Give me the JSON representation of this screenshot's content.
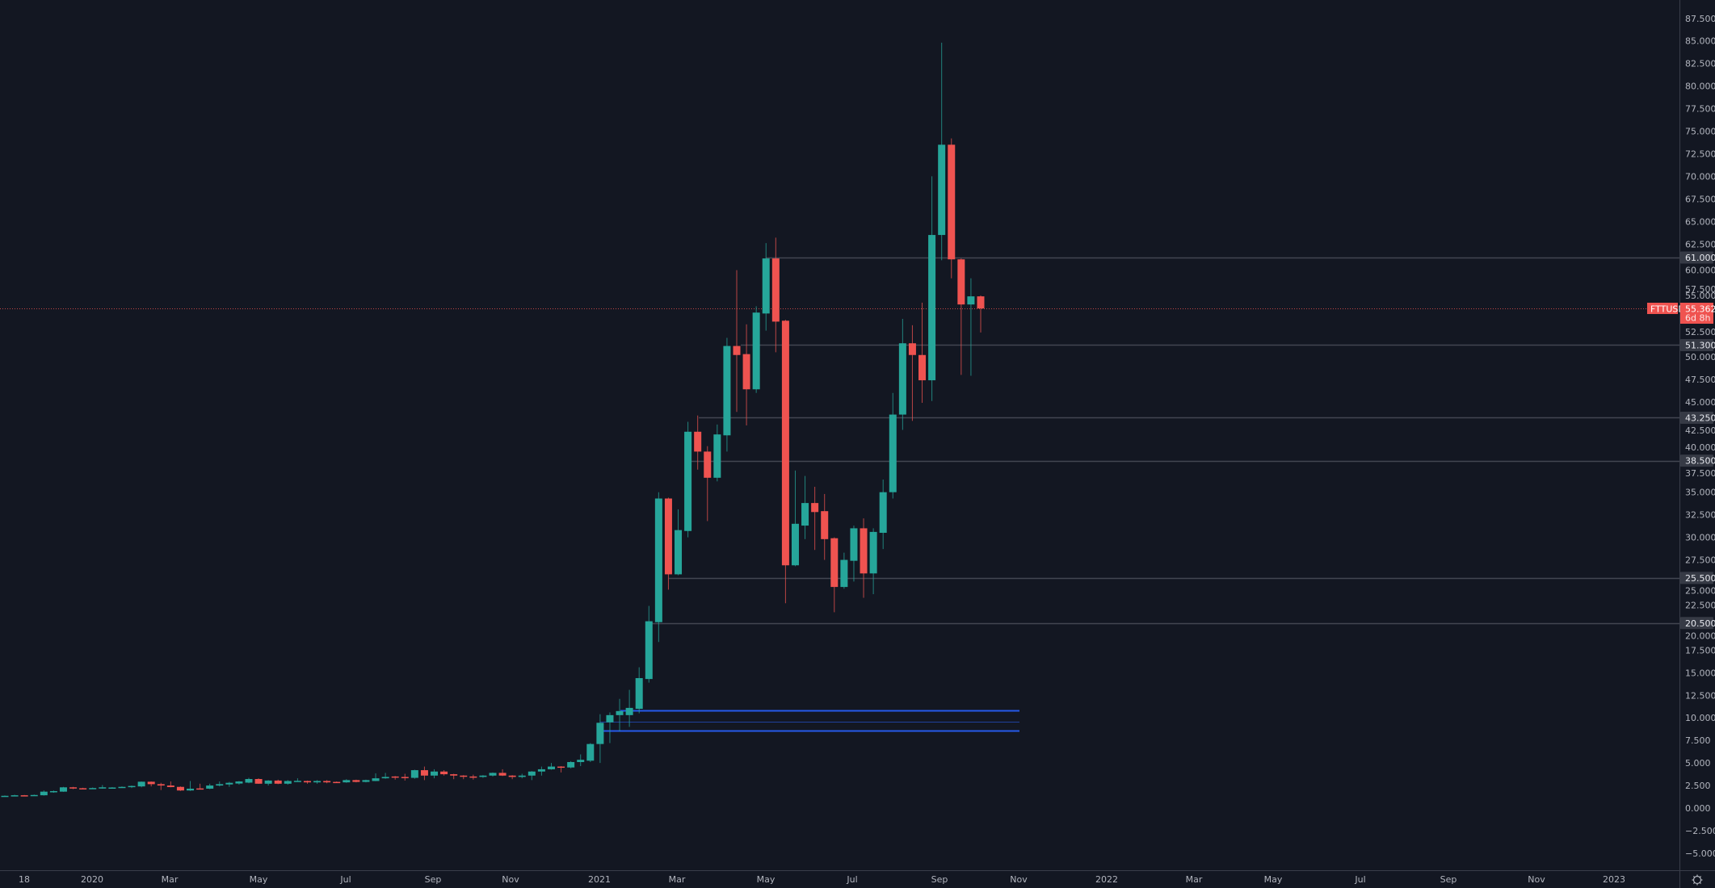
{
  "colors": {
    "background": "#131722",
    "up": "#26a69a",
    "down": "#ef5350",
    "level_line": "#434651",
    "level_label_bg": "#363a45",
    "zone_line": "#2962ff",
    "price_line": "#ef5350",
    "axis_text": "#b2b5be"
  },
  "symbol_label": "FTTUSD",
  "last_price": {
    "value": "55.362",
    "countdown": "6d 8h"
  },
  "settings_icon": "gear-icon",
  "chart_data": {
    "type": "candlestick",
    "interval": "weekly",
    "ylim": [
      -6,
      89
    ],
    "y_ticks": [
      "87.500",
      "85.000",
      "82.500",
      "80.000",
      "77.500",
      "75.000",
      "72.500",
      "70.000",
      "67.500",
      "65.000",
      "62.500",
      "60.000",
      "57.500",
      "55.000",
      "52.500",
      "50.000",
      "47.500",
      "45.000",
      "42.500",
      "40.000",
      "37.500",
      "35.000",
      "32.500",
      "30.000",
      "27.500",
      "25.000",
      "22.500",
      "20.000",
      "17.500",
      "15.000",
      "12.500",
      "10.000",
      "7.500",
      "5.000",
      "2.500",
      "0.000",
      "−2.500",
      "−5.000"
    ],
    "x_ticks": [
      "18",
      "2020",
      "Mar",
      "May",
      "Jul",
      "Sep",
      "Nov",
      "2021",
      "Mar",
      "May",
      "Jul",
      "Sep",
      "Nov",
      "2022",
      "Mar",
      "May",
      "Jul",
      "Sep",
      "Nov",
      "2023"
    ],
    "horizontal_levels": [
      {
        "price": 61.0,
        "label": "61.000"
      },
      {
        "price": 51.3,
        "label": "51.300"
      },
      {
        "price": 43.25,
        "label": "43.250"
      },
      {
        "price": 38.5,
        "label": "38.500"
      },
      {
        "price": 25.5,
        "label": "25.500"
      },
      {
        "price": 20.5,
        "label": "20.500"
      }
    ],
    "zone_lines": [
      10.8,
      9.6,
      8.6
    ],
    "last_price": 55.362,
    "candles_columns": [
      "date",
      "open",
      "high",
      "low",
      "close"
    ],
    "candles": [
      [
        "2019-11-04",
        1.3,
        1.4,
        1.28,
        1.36
      ],
      [
        "2019-11-11",
        1.35,
        1.48,
        1.32,
        1.42
      ],
      [
        "2019-11-18",
        1.42,
        1.45,
        1.35,
        1.38
      ],
      [
        "2019-11-25",
        1.38,
        1.5,
        1.35,
        1.45
      ],
      [
        "2019-12-02",
        1.42,
        1.95,
        1.38,
        1.82
      ],
      [
        "2019-12-09",
        1.8,
        1.95,
        1.7,
        1.88
      ],
      [
        "2019-12-16",
        1.82,
        2.35,
        1.8,
        2.3
      ],
      [
        "2019-12-23",
        2.3,
        2.35,
        2.1,
        2.2
      ],
      [
        "2019-12-30",
        2.2,
        2.25,
        2.1,
        2.15
      ],
      [
        "2020-01-06",
        2.15,
        2.28,
        2.1,
        2.22
      ],
      [
        "2020-01-13",
        2.2,
        2.55,
        2.15,
        2.3
      ],
      [
        "2020-01-20",
        2.25,
        2.32,
        2.2,
        2.28
      ],
      [
        "2020-01-27",
        2.28,
        2.4,
        2.25,
        2.35
      ],
      [
        "2020-02-03",
        2.35,
        2.5,
        2.22,
        2.45
      ],
      [
        "2020-02-10",
        2.4,
        2.95,
        2.3,
        2.92
      ],
      [
        "2020-02-17",
        2.92,
        2.95,
        2.4,
        2.65
      ],
      [
        "2020-02-24",
        2.65,
        2.8,
        2.0,
        2.5
      ],
      [
        "2020-03-02",
        2.5,
        2.95,
        2.3,
        2.33
      ],
      [
        "2020-03-09",
        2.35,
        2.4,
        1.9,
        1.95
      ],
      [
        "2020-03-16",
        1.95,
        3.0,
        1.9,
        2.15
      ],
      [
        "2020-03-23",
        2.18,
        2.7,
        2.1,
        2.12
      ],
      [
        "2020-03-30",
        2.15,
        2.7,
        2.1,
        2.5
      ],
      [
        "2020-04-06",
        2.5,
        2.95,
        2.4,
        2.65
      ],
      [
        "2020-04-13",
        2.62,
        2.9,
        2.35,
        2.8
      ],
      [
        "2020-04-20",
        2.72,
        3.0,
        2.6,
        2.95
      ],
      [
        "2020-04-27",
        2.82,
        3.35,
        2.75,
        3.22
      ],
      [
        "2020-05-04",
        3.22,
        3.3,
        2.68,
        2.7
      ],
      [
        "2020-05-11",
        2.7,
        3.1,
        2.5,
        3.05
      ],
      [
        "2020-05-18",
        3.05,
        3.15,
        2.65,
        2.7
      ],
      [
        "2020-05-25",
        2.7,
        3.1,
        2.6,
        3.0
      ],
      [
        "2020-06-01",
        2.98,
        3.3,
        2.9,
        3.02
      ],
      [
        "2020-06-08",
        3.0,
        3.05,
        2.7,
        2.85
      ],
      [
        "2020-06-15",
        2.85,
        3.1,
        2.7,
        3.0
      ],
      [
        "2020-06-22",
        3.0,
        3.1,
        2.75,
        2.85
      ],
      [
        "2020-06-29",
        2.9,
        2.95,
        2.8,
        2.85
      ],
      [
        "2020-07-06",
        2.85,
        3.2,
        2.8,
        3.1
      ],
      [
        "2020-07-13",
        3.1,
        3.15,
        2.85,
        2.9
      ],
      [
        "2020-07-20",
        2.9,
        3.15,
        2.85,
        3.1
      ],
      [
        "2020-07-27",
        3.0,
        3.85,
        2.98,
        3.3
      ],
      [
        "2020-08-03",
        3.3,
        3.9,
        3.25,
        3.45
      ],
      [
        "2020-08-10",
        3.5,
        3.55,
        3.15,
        3.45
      ],
      [
        "2020-08-17",
        3.45,
        3.8,
        3.05,
        3.35
      ],
      [
        "2020-08-24",
        3.35,
        4.25,
        3.25,
        4.2
      ],
      [
        "2020-08-31",
        4.2,
        4.6,
        3.1,
        3.6
      ],
      [
        "2020-09-07",
        3.6,
        4.3,
        3.3,
        4.05
      ],
      [
        "2020-09-14",
        4.05,
        4.2,
        3.6,
        3.75
      ],
      [
        "2020-09-21",
        3.75,
        3.8,
        3.2,
        3.6
      ],
      [
        "2020-09-28",
        3.6,
        3.65,
        3.2,
        3.5
      ],
      [
        "2020-10-05",
        3.5,
        3.7,
        3.15,
        3.45
      ],
      [
        "2020-10-12",
        3.45,
        3.65,
        3.35,
        3.6
      ],
      [
        "2020-10-19",
        3.6,
        3.95,
        3.5,
        3.9
      ],
      [
        "2020-10-26",
        3.9,
        4.3,
        3.55,
        3.6
      ],
      [
        "2020-11-02",
        3.6,
        3.65,
        3.2,
        3.45
      ],
      [
        "2020-11-09",
        3.45,
        3.8,
        3.3,
        3.6
      ],
      [
        "2020-11-16",
        3.6,
        4.1,
        3.1,
        4.05
      ],
      [
        "2020-11-23",
        4.05,
        4.6,
        3.6,
        4.3
      ],
      [
        "2020-11-30",
        4.3,
        5.0,
        4.25,
        4.6
      ],
      [
        "2020-12-07",
        4.6,
        4.65,
        3.95,
        4.5
      ],
      [
        "2020-12-14",
        4.5,
        5.2,
        4.4,
        5.1
      ],
      [
        "2020-12-21",
        5.1,
        5.95,
        4.65,
        5.35
      ],
      [
        "2020-12-28",
        5.25,
        7.2,
        5.1,
        7.1
      ],
      [
        "2021-01-04",
        7.1,
        10.4,
        5.0,
        9.45
      ],
      [
        "2021-01-11",
        9.5,
        10.6,
        7.2,
        10.3
      ],
      [
        "2021-01-18",
        10.3,
        12.1,
        8.5,
        10.75
      ],
      [
        "2021-01-25",
        10.3,
        13.1,
        9.0,
        11.1
      ],
      [
        "2021-02-01",
        11.0,
        15.6,
        10.5,
        14.4
      ],
      [
        "2021-02-08",
        14.3,
        22.4,
        13.9,
        20.7
      ],
      [
        "2021-02-15",
        20.6,
        35.0,
        18.4,
        34.3
      ],
      [
        "2021-02-22",
        34.3,
        34.4,
        24.2,
        25.9
      ],
      [
        "2021-03-01",
        25.9,
        33.1,
        25.8,
        30.8
      ],
      [
        "2021-03-08",
        30.7,
        42.8,
        30.0,
        41.7
      ],
      [
        "2021-03-15",
        41.7,
        43.5,
        37.5,
        39.5
      ],
      [
        "2021-03-22",
        39.5,
        40.1,
        31.8,
        36.6
      ],
      [
        "2021-03-29",
        36.6,
        42.5,
        36.2,
        41.4
      ],
      [
        "2021-04-05",
        41.3,
        52.1,
        39.5,
        51.2
      ],
      [
        "2021-04-12",
        51.2,
        59.6,
        43.9,
        50.2
      ],
      [
        "2021-04-19",
        50.3,
        53.6,
        42.4,
        46.4
      ],
      [
        "2021-04-26",
        46.4,
        55.6,
        46.0,
        54.9
      ],
      [
        "2021-05-03",
        54.8,
        62.6,
        52.9,
        60.9
      ],
      [
        "2021-05-10",
        60.9,
        63.2,
        50.5,
        53.9
      ],
      [
        "2021-05-17",
        54.0,
        54.1,
        22.7,
        26.9
      ],
      [
        "2021-05-24",
        26.9,
        37.4,
        26.8,
        31.5
      ],
      [
        "2021-05-31",
        31.3,
        36.8,
        29.8,
        33.8
      ],
      [
        "2021-06-07",
        33.8,
        35.6,
        28.6,
        32.8
      ],
      [
        "2021-06-14",
        32.9,
        34.8,
        27.5,
        29.8
      ],
      [
        "2021-06-21",
        29.9,
        30.0,
        21.7,
        24.5
      ],
      [
        "2021-06-28",
        24.5,
        28.3,
        24.3,
        27.5
      ],
      [
        "2021-07-05",
        27.4,
        31.3,
        25.1,
        31.0
      ],
      [
        "2021-07-12",
        31.0,
        32.1,
        23.3,
        26.0
      ],
      [
        "2021-07-19",
        26.0,
        31.0,
        23.7,
        30.6
      ],
      [
        "2021-07-26",
        30.5,
        36.4,
        28.7,
        35.0
      ],
      [
        "2021-08-02",
        35.0,
        46.0,
        34.3,
        43.6
      ],
      [
        "2021-08-09",
        43.6,
        54.2,
        41.9,
        51.5
      ],
      [
        "2021-08-16",
        51.5,
        53.5,
        42.9,
        50.2
      ],
      [
        "2021-08-23",
        50.2,
        56.0,
        44.9,
        47.4
      ],
      [
        "2021-08-30",
        47.4,
        70.0,
        45.1,
        63.5
      ],
      [
        "2021-09-06",
        63.5,
        84.8,
        60.7,
        73.5
      ],
      [
        "2021-09-13",
        73.5,
        74.2,
        58.7,
        60.8
      ],
      [
        "2021-09-20",
        60.8,
        60.9,
        48.0,
        55.8
      ],
      [
        "2021-09-27",
        55.8,
        58.7,
        47.9,
        56.7
      ],
      [
        "2021-10-04",
        56.7,
        56.8,
        52.7,
        55.362
      ]
    ]
  }
}
